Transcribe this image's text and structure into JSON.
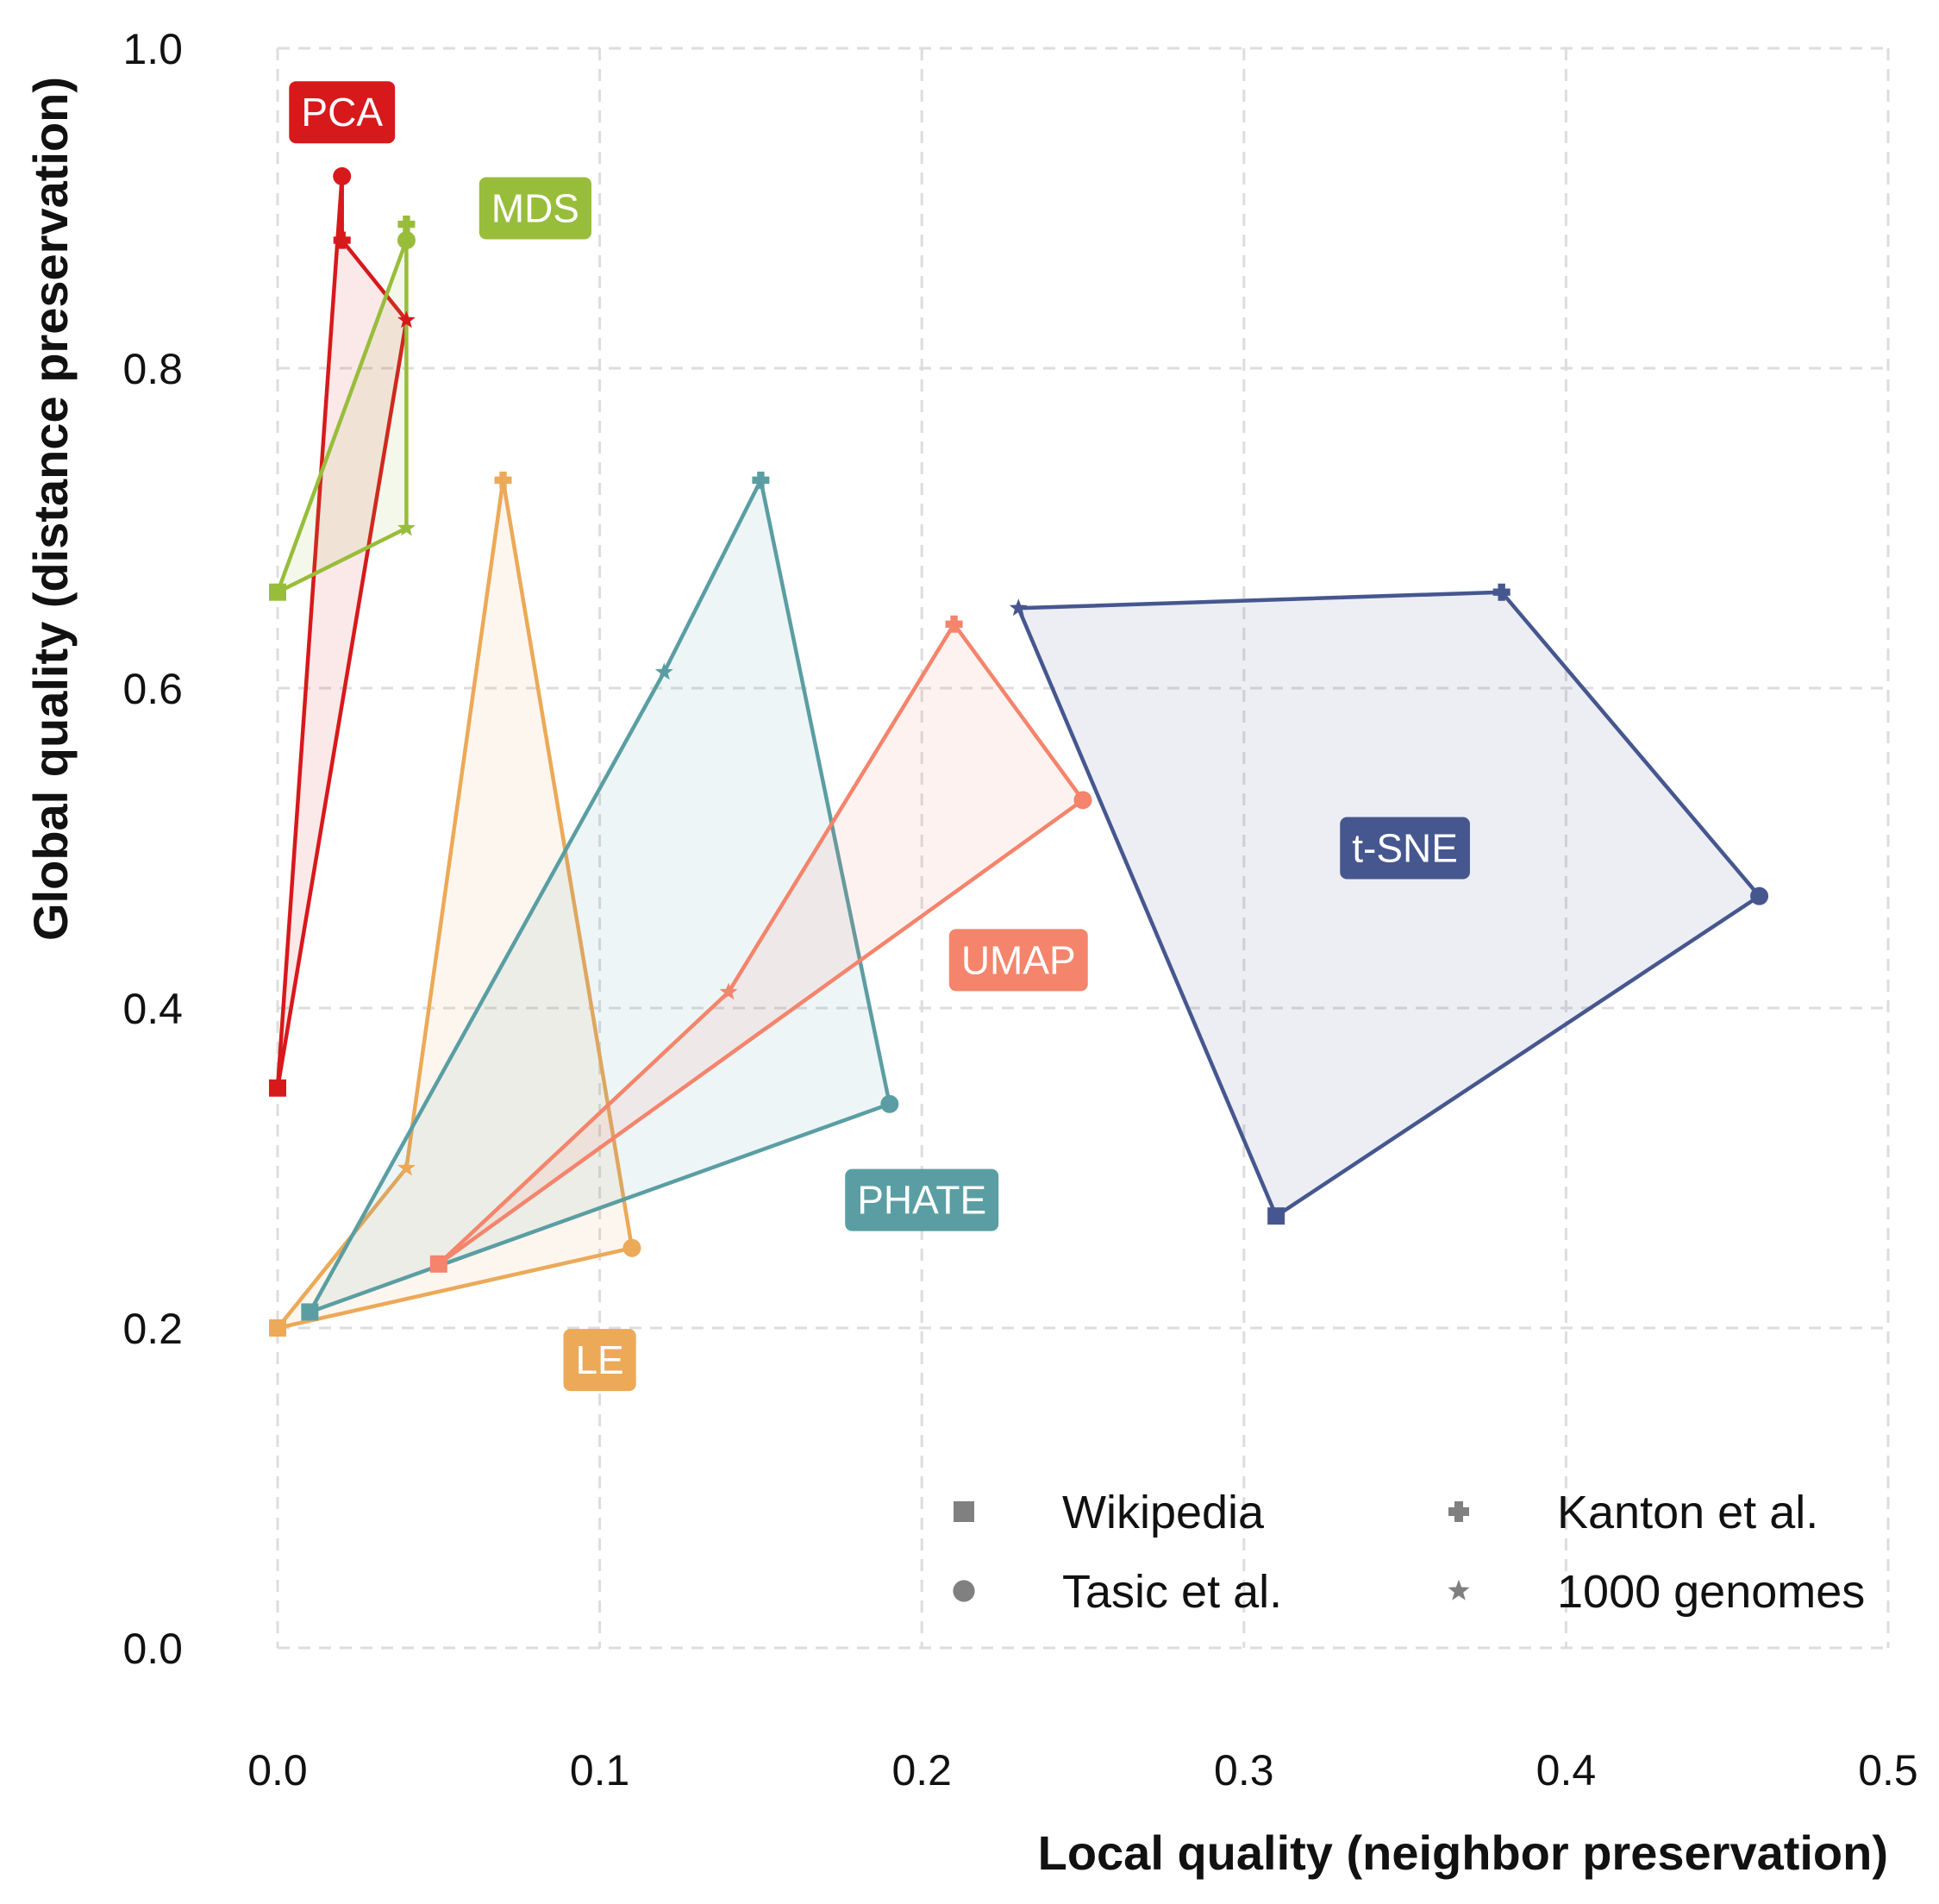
{
  "chart_data": {
    "type": "scatter",
    "xlabel": "Local quality (neighbor preservation)",
    "ylabel": "Global quality (distance preservation)",
    "xlim": [
      0,
      0.5
    ],
    "ylim": [
      0,
      1.0
    ],
    "x_ticks": [
      0.0,
      0.1,
      0.2,
      0.3,
      0.4,
      0.5
    ],
    "x_tick_labels": [
      "0.0",
      "0.1",
      "0.2",
      "0.3",
      "0.4",
      "0.5"
    ],
    "y_ticks": [
      0.0,
      0.2,
      0.4,
      0.6,
      0.8,
      1.0
    ],
    "y_tick_labels": [
      "0.0",
      "0.2",
      "0.4",
      "0.6",
      "0.8",
      "1.0"
    ],
    "grid": true,
    "legend_position": "bottom-right",
    "datasets": [
      {
        "name": "Wikipedia",
        "marker": "square"
      },
      {
        "name": "Tasic et al.",
        "marker": "circle"
      },
      {
        "name": "Kanton et al.",
        "marker": "plus"
      },
      {
        "name": "1000 genomes",
        "marker": "star"
      }
    ],
    "series": [
      {
        "name": "PCA",
        "color": "#d7191c",
        "label_at": [
          0.02,
          0.96
        ],
        "points": [
          {
            "dataset": "Wikipedia",
            "x": 0.0,
            "y": 0.35
          },
          {
            "dataset": "Tasic et al.",
            "x": 0.02,
            "y": 0.92
          },
          {
            "dataset": "Kanton et al.",
            "x": 0.02,
            "y": 0.88
          },
          {
            "dataset": "1000 genomes",
            "x": 0.04,
            "y": 0.83
          }
        ],
        "hull": [
          "Wikipedia",
          "Tasic et al.",
          "Kanton et al.",
          "1000 genomes"
        ]
      },
      {
        "name": "MDS",
        "color": "#98bd3b",
        "label_at": [
          0.08,
          0.9
        ],
        "points": [
          {
            "dataset": "Wikipedia",
            "x": 0.0,
            "y": 0.66
          },
          {
            "dataset": "Tasic et al.",
            "x": 0.04,
            "y": 0.88
          },
          {
            "dataset": "Kanton et al.",
            "x": 0.04,
            "y": 0.89
          },
          {
            "dataset": "1000 genomes",
            "x": 0.04,
            "y": 0.7
          }
        ],
        "hull": [
          "Wikipedia",
          "Tasic et al.",
          "Kanton et al.",
          "1000 genomes"
        ]
      },
      {
        "name": "LE",
        "color": "#eca958",
        "label_at": [
          0.1,
          0.18
        ],
        "points": [
          {
            "dataset": "Wikipedia",
            "x": 0.0,
            "y": 0.2
          },
          {
            "dataset": "Tasic et al.",
            "x": 0.11,
            "y": 0.25
          },
          {
            "dataset": "Kanton et al.",
            "x": 0.07,
            "y": 0.73
          },
          {
            "dataset": "1000 genomes",
            "x": 0.04,
            "y": 0.3
          }
        ],
        "hull": [
          "Wikipedia",
          "1000 genomes",
          "Kanton et al.",
          "Tasic et al."
        ]
      },
      {
        "name": "PHATE",
        "color": "#5a9ea3",
        "label_at": [
          0.2,
          0.28
        ],
        "points": [
          {
            "dataset": "Wikipedia",
            "x": 0.01,
            "y": 0.21
          },
          {
            "dataset": "Tasic et al.",
            "x": 0.19,
            "y": 0.34
          },
          {
            "dataset": "Kanton et al.",
            "x": 0.15,
            "y": 0.73
          },
          {
            "dataset": "1000 genomes",
            "x": 0.12,
            "y": 0.61
          }
        ],
        "hull": [
          "Wikipedia",
          "1000 genomes",
          "Kanton et al.",
          "Tasic et al."
        ]
      },
      {
        "name": "UMAP",
        "color": "#f4846b",
        "label_at": [
          0.23,
          0.43
        ],
        "points": [
          {
            "dataset": "Wikipedia",
            "x": 0.05,
            "y": 0.24
          },
          {
            "dataset": "Tasic et al.",
            "x": 0.25,
            "y": 0.53
          },
          {
            "dataset": "Kanton et al.",
            "x": 0.21,
            "y": 0.64
          },
          {
            "dataset": "1000 genomes",
            "x": 0.14,
            "y": 0.41
          }
        ],
        "hull": [
          "Wikipedia",
          "1000 genomes",
          "Kanton et al.",
          "Tasic et al."
        ]
      },
      {
        "name": "t-SNE",
        "color": "#46578f",
        "label_at": [
          0.35,
          0.5
        ],
        "points": [
          {
            "dataset": "Wikipedia",
            "x": 0.31,
            "y": 0.27
          },
          {
            "dataset": "Tasic et al.",
            "x": 0.46,
            "y": 0.47
          },
          {
            "dataset": "Kanton et al.",
            "x": 0.38,
            "y": 0.66
          },
          {
            "dataset": "1000 genomes",
            "x": 0.23,
            "y": 0.65
          }
        ],
        "hull": [
          "Wikipedia",
          "1000 genomes",
          "Kanton et al.",
          "Tasic et al."
        ]
      }
    ]
  }
}
